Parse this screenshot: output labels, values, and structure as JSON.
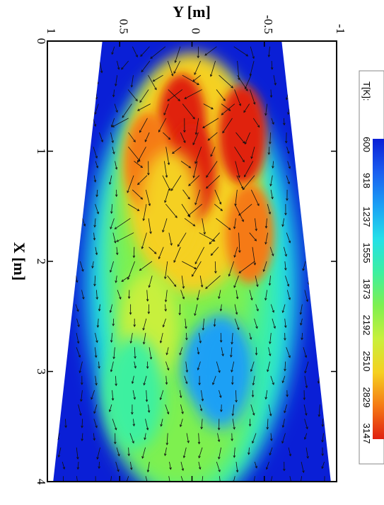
{
  "chart_data": {
    "type": "heatmap",
    "xlabel": "X [m]",
    "ylabel": "Y [m]",
    "xlim": [
      0,
      4
    ],
    "ylim": [
      -1,
      1
    ],
    "x_ticks": [
      "0",
      "1",
      "2",
      "3",
      "4"
    ],
    "y_ticks": [
      "-1",
      "-0.5",
      "0",
      "0.5",
      "1"
    ],
    "colorbar": {
      "title": "T[K]:",
      "levels": [
        "600",
        "918",
        "1237",
        "1555",
        "1873",
        "2192",
        "2510",
        "2829",
        "3147"
      ],
      "colors": [
        "#0a1fd6",
        "#1a5ef0",
        "#1aa0f5",
        "#23e0e8",
        "#3cf0a0",
        "#7ef050",
        "#c8f03c",
        "#f5d020",
        "#f57a14",
        "#e02010"
      ]
    },
    "domain_walls": {
      "lower": [
        [
          0,
          -0.62
        ],
        [
          4,
          -0.96
        ]
      ],
      "upper": [
        [
          0,
          0.62
        ],
        [
          4,
          0.96
        ]
      ]
    },
    "hot_regions": [
      {
        "x": 0.75,
        "y": 0.07,
        "level": 3147
      },
      {
        "x": 1.2,
        "y": 0.0,
        "level": 3147
      },
      {
        "x": 0.85,
        "y": -0.35,
        "level": 3147
      },
      {
        "x": 1.75,
        "y": -0.4,
        "level": 2829
      },
      {
        "x": 1.1,
        "y": 0.3,
        "level": 2829
      },
      {
        "x": 1.5,
        "y": 0.15,
        "level": 2510
      },
      {
        "x": 2.6,
        "y": 0.3,
        "level": 2192
      },
      {
        "x": 3.2,
        "y": 0.4,
        "level": 1873
      },
      {
        "x": 3.0,
        "y": -0.2,
        "level": 1237
      }
    ]
  }
}
